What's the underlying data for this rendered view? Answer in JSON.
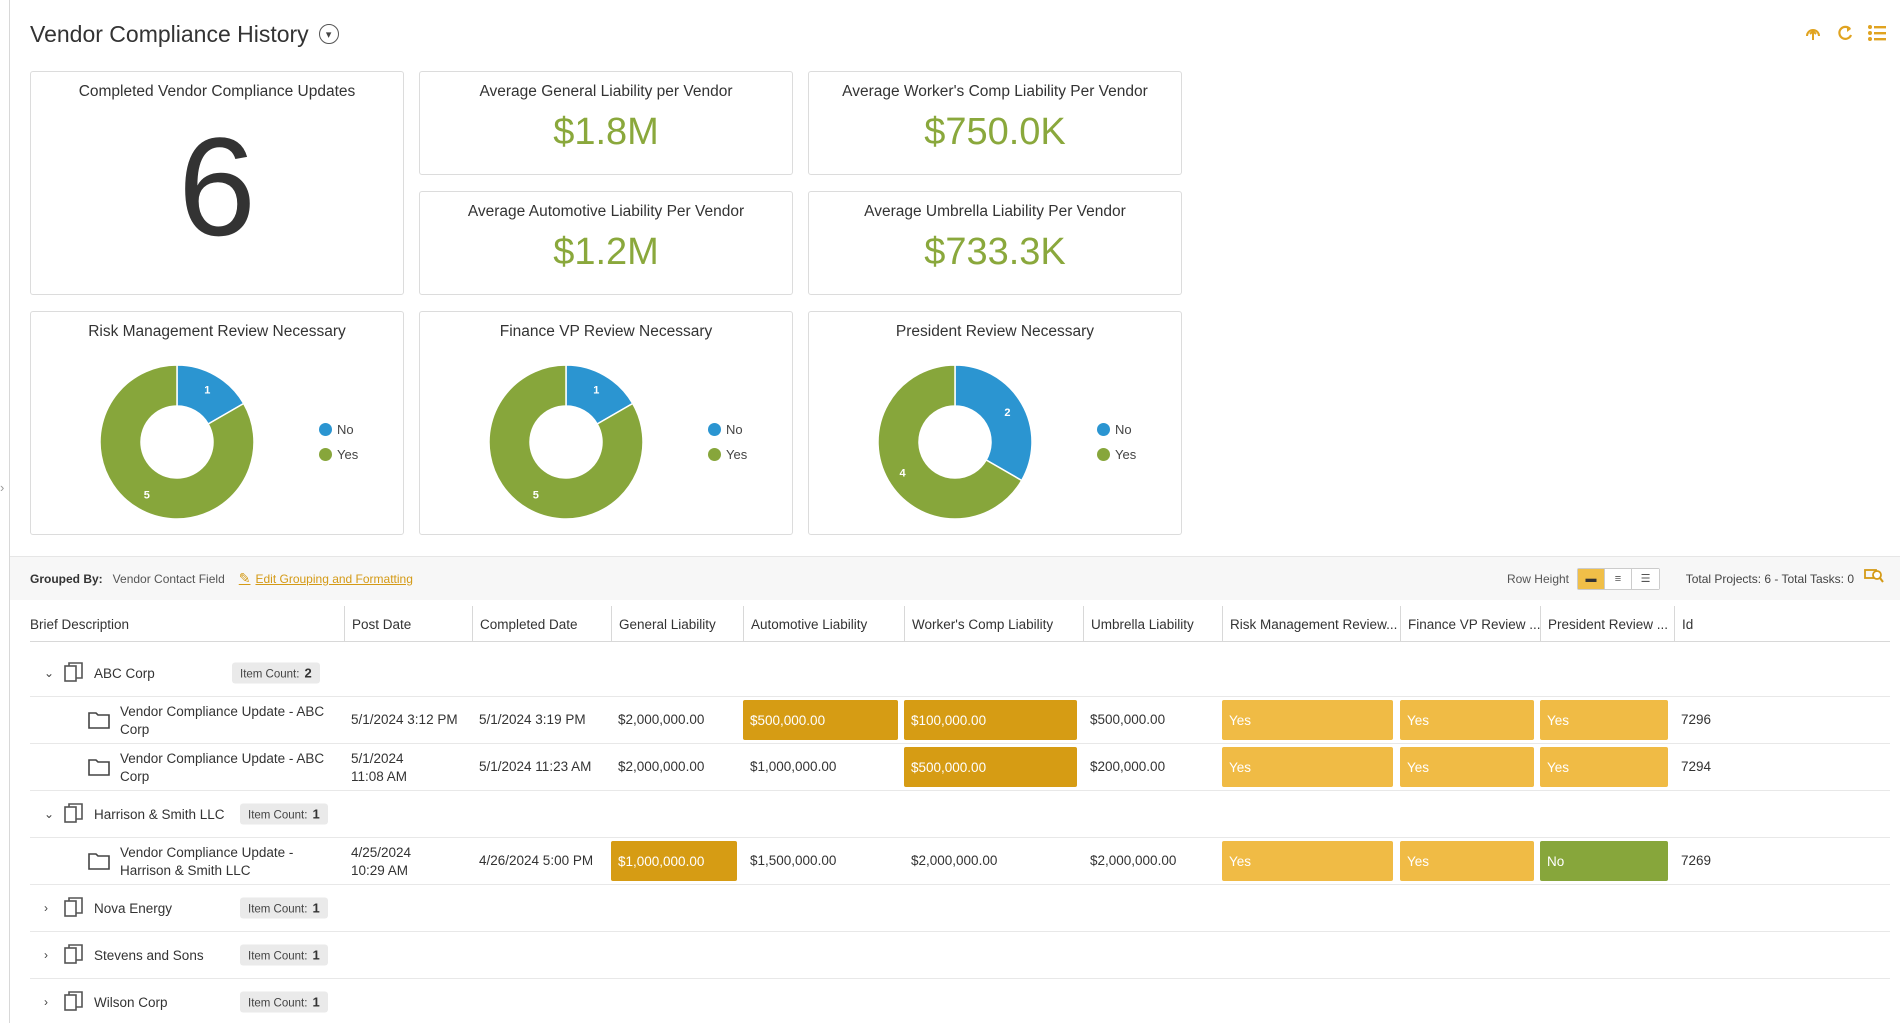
{
  "page": {
    "title": "Vendor Compliance History",
    "top_icons": [
      "upload-icon",
      "refresh-icon",
      "list-menu-icon"
    ],
    "accent_color": "#e0a320"
  },
  "kpis": {
    "completed": {
      "title": "Completed Vendor Compliance Updates",
      "value": "6"
    },
    "general": {
      "title": "Average General Liability per Vendor",
      "value": "$1.8M"
    },
    "workers": {
      "title": "Average Worker's Comp Liability Per Vendor",
      "value": "$750.0K"
    },
    "automotive": {
      "title": "Average Automotive Liability Per Vendor",
      "value": "$1.2M"
    },
    "umbrella": {
      "title": "Average Umbrella Liability Per Vendor",
      "value": "$733.3K"
    },
    "value_color": "#8aa83c"
  },
  "chart_data": [
    {
      "type": "pie",
      "title": "Risk Management Review Necessary",
      "categories": [
        "No",
        "Yes"
      ],
      "values": [
        1,
        5
      ],
      "colors": [
        "#2b95d1",
        "#87a63b"
      ],
      "donut": true,
      "legend": "right"
    },
    {
      "type": "pie",
      "title": "Finance VP Review Necessary",
      "categories": [
        "No",
        "Yes"
      ],
      "values": [
        1,
        5
      ],
      "colors": [
        "#2b95d1",
        "#87a63b"
      ],
      "donut": true,
      "legend": "right"
    },
    {
      "type": "pie",
      "title": "President Review Necessary",
      "categories": [
        "No",
        "Yes"
      ],
      "values": [
        2,
        4
      ],
      "colors": [
        "#2b95d1",
        "#87a63b"
      ],
      "donut": true,
      "legend": "right"
    }
  ],
  "grouping": {
    "label": "Grouped By:",
    "value": "Vendor Contact Field",
    "edit_link": "Edit Grouping and Formatting",
    "row_height_label": "Row Height",
    "totals": "Total Projects: 6 - Total Tasks: 0"
  },
  "table": {
    "columns": [
      "Brief Description",
      "Post Date",
      "Completed Date",
      "General Liability",
      "Automotive Liability",
      "Worker's Comp Liability",
      "Umbrella Liability",
      "Risk Management Review...",
      "Finance VP Review ...",
      "President Review ...",
      "Id"
    ],
    "item_count_label": "Item Count:",
    "groups": [
      {
        "name": "ABC Corp",
        "count": "2",
        "expanded": true,
        "rows": [
          {
            "desc1": "Vendor Compliance Update - ABC",
            "desc2": "Corp",
            "post1": "5/1/2024  3:12 PM",
            "post2": "",
            "completed": "5/1/2024  3:19 PM",
            "general": "$2,000,000.00",
            "auto": "$500,000.00",
            "workers": "$100,000.00",
            "umbrella": "$500,000.00",
            "risk": "Yes",
            "finance": "Yes",
            "president": "Yes",
            "id": "7296"
          },
          {
            "desc1": "Vendor Compliance Update - ABC",
            "desc2": "Corp",
            "post1": "5/1/2024",
            "post2": "11:08 AM",
            "completed": "5/1/2024  11:23 AM",
            "general": "$2,000,000.00",
            "auto": "$1,000,000.00",
            "workers": "$500,000.00",
            "umbrella": "$200,000.00",
            "risk": "Yes",
            "finance": "Yes",
            "president": "Yes",
            "id": "7294"
          }
        ]
      },
      {
        "name": "Harrison & Smith LLC",
        "count": "1",
        "expanded": true,
        "rows": [
          {
            "desc1": "Vendor Compliance Update -",
            "desc2": "Harrison & Smith LLC",
            "post1": "4/25/2024",
            "post2": "10:29 AM",
            "completed": "4/26/2024  5:00 PM",
            "general": "$1,000,000.00",
            "auto": "$1,500,000.00",
            "workers": "$2,000,000.00",
            "umbrella": "$2,000,000.00",
            "risk": "Yes",
            "finance": "Yes",
            "president": "No",
            "id": "7269"
          }
        ]
      },
      {
        "name": "Nova Energy",
        "count": "1",
        "expanded": false
      },
      {
        "name": "Stevens and Sons",
        "count": "1",
        "expanded": false
      },
      {
        "name": "Wilson Corp",
        "count": "1",
        "expanded": false
      }
    ]
  }
}
